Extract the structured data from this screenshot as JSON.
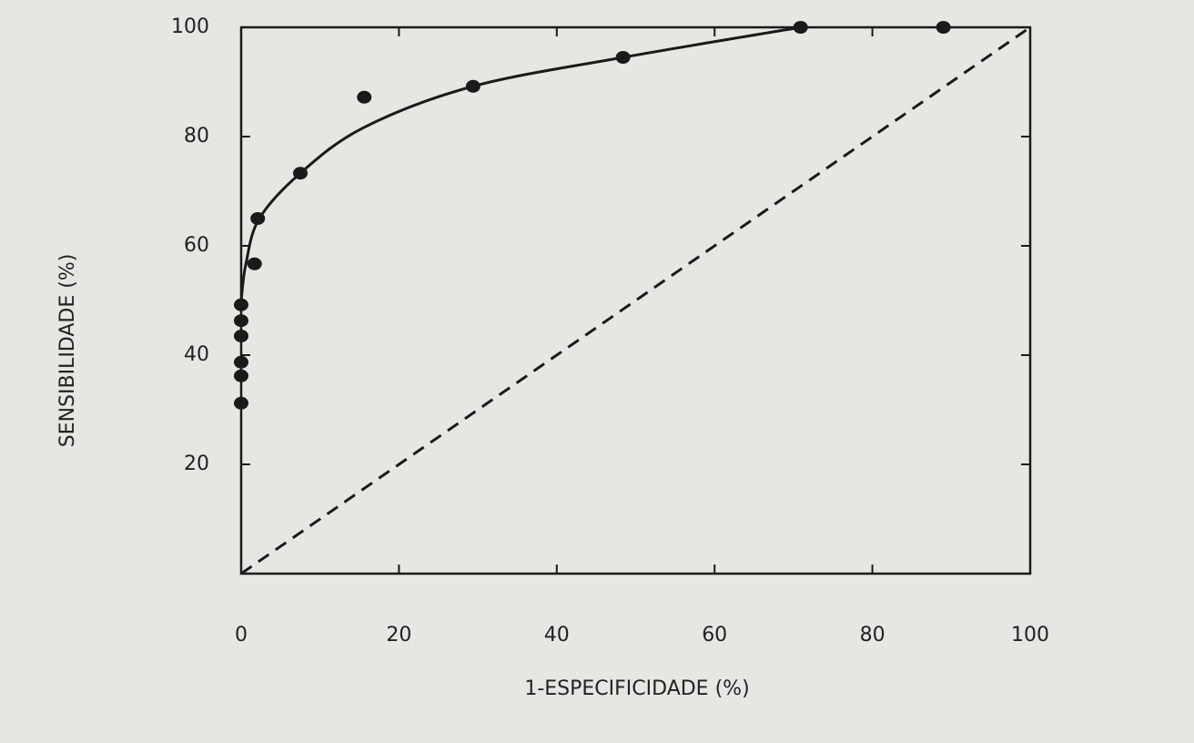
{
  "chart_data": {
    "type": "scatter",
    "xlabel": "1-ESPECIFICIDADE (%)",
    "ylabel": "SENSIBILIDADE (%)",
    "xlim": [
      0,
      100
    ],
    "ylim": [
      0,
      100
    ],
    "xticks": [
      0,
      20,
      40,
      60,
      80,
      100
    ],
    "yticks": [
      20,
      40,
      60,
      80,
      100
    ],
    "series": [
      {
        "mode": "markers",
        "color": "#1a1a1a",
        "x": [
          0,
          0,
          0,
          0,
          0,
          0,
          1.7,
          2.1,
          7.5,
          15.6,
          29.4,
          48.4,
          70.9,
          89
        ],
        "values": [
          31.2,
          36.2,
          38.7,
          43.5,
          46.3,
          49.2,
          56.7,
          65,
          73.3,
          87.2,
          89.2,
          94.5,
          100,
          100
        ]
      },
      {
        "mode": "line",
        "color": "#1a1a1a",
        "x": [
          0,
          0.6,
          2.3,
          7.5,
          15.6,
          29.4,
          48.4,
          70.9
        ],
        "values": [
          50,
          56.7,
          65,
          73.3,
          81.7,
          89.2,
          94.5,
          100
        ]
      },
      {
        "mode": "line",
        "dash": true,
        "color": "#1a1a1a",
        "x": [
          0,
          100
        ],
        "values": [
          0,
          100
        ]
      }
    ]
  }
}
